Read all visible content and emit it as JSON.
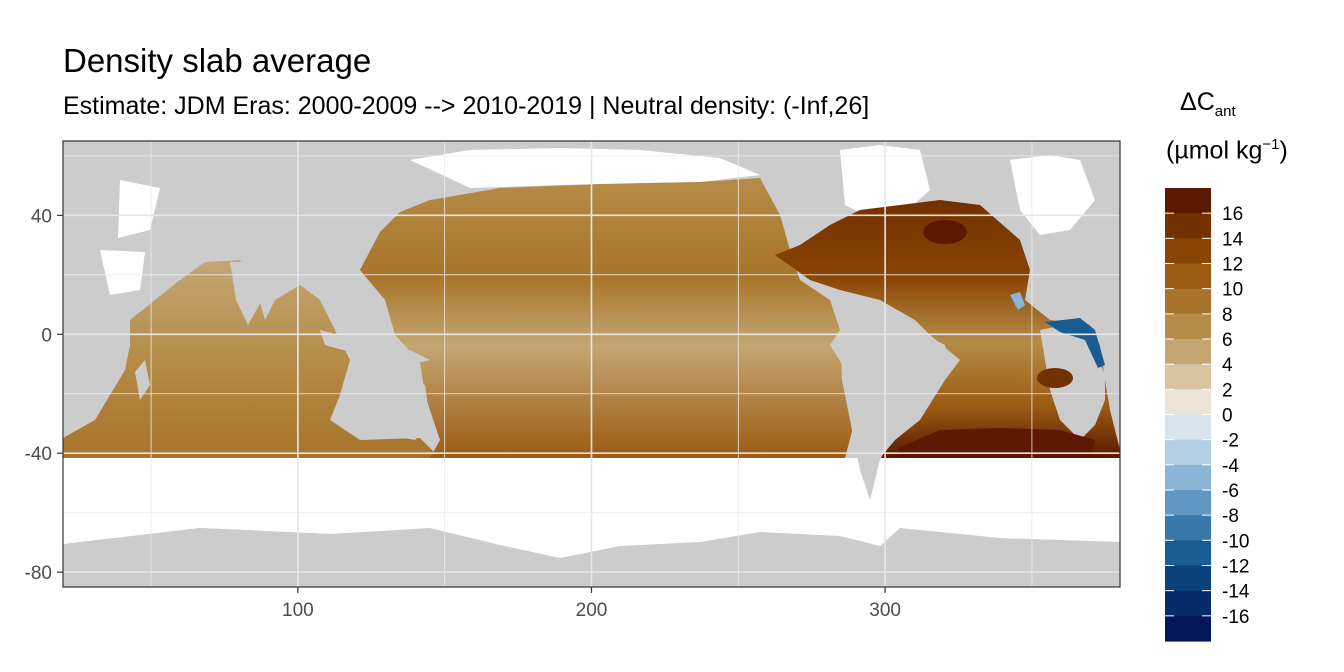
{
  "chart_data": {
    "type": "heatmap",
    "title": "Density slab average",
    "subtitle": "Estimate: JDM Eras: 2000-2009 --> 2010-2019 | Neutral density: (-Inf,26]",
    "xlabel": "",
    "ylabel": "",
    "xlim": [
      20,
      380
    ],
    "ylim": [
      -85,
      65
    ],
    "x_ticks": [
      100,
      200,
      300
    ],
    "y_ticks": [
      40,
      0,
      -40,
      -80
    ],
    "grid": true,
    "legend": {
      "title_main": "ΔC",
      "title_sub": "ant",
      "unit_prefix": "(µmol kg",
      "unit_sup": "−1",
      "unit_suffix": ")",
      "placement": "right",
      "breaks": [
        "16",
        "14",
        "12",
        "10",
        "8",
        "6",
        "4",
        "2",
        "0",
        "-2",
        "-4",
        "-6",
        "-8",
        "-10",
        "-12",
        "-14",
        "-16"
      ],
      "colors": [
        "#5c1800",
        "#733000",
        "#8a4504",
        "#9b5b12",
        "#a8742a",
        "#b58c48",
        "#c4a672",
        "#d8c4a0",
        "#ece4d8",
        "#d8e5ee",
        "#b3cfe3",
        "#8ab5d6",
        "#5f97c2",
        "#3878aa",
        "#185c93",
        "#0a417c",
        "#062b6a",
        "#03185a"
      ]
    },
    "colors": {
      "land": "#cccccc",
      "no_data": "#ffffff",
      "panel_border": "#333333"
    }
  }
}
